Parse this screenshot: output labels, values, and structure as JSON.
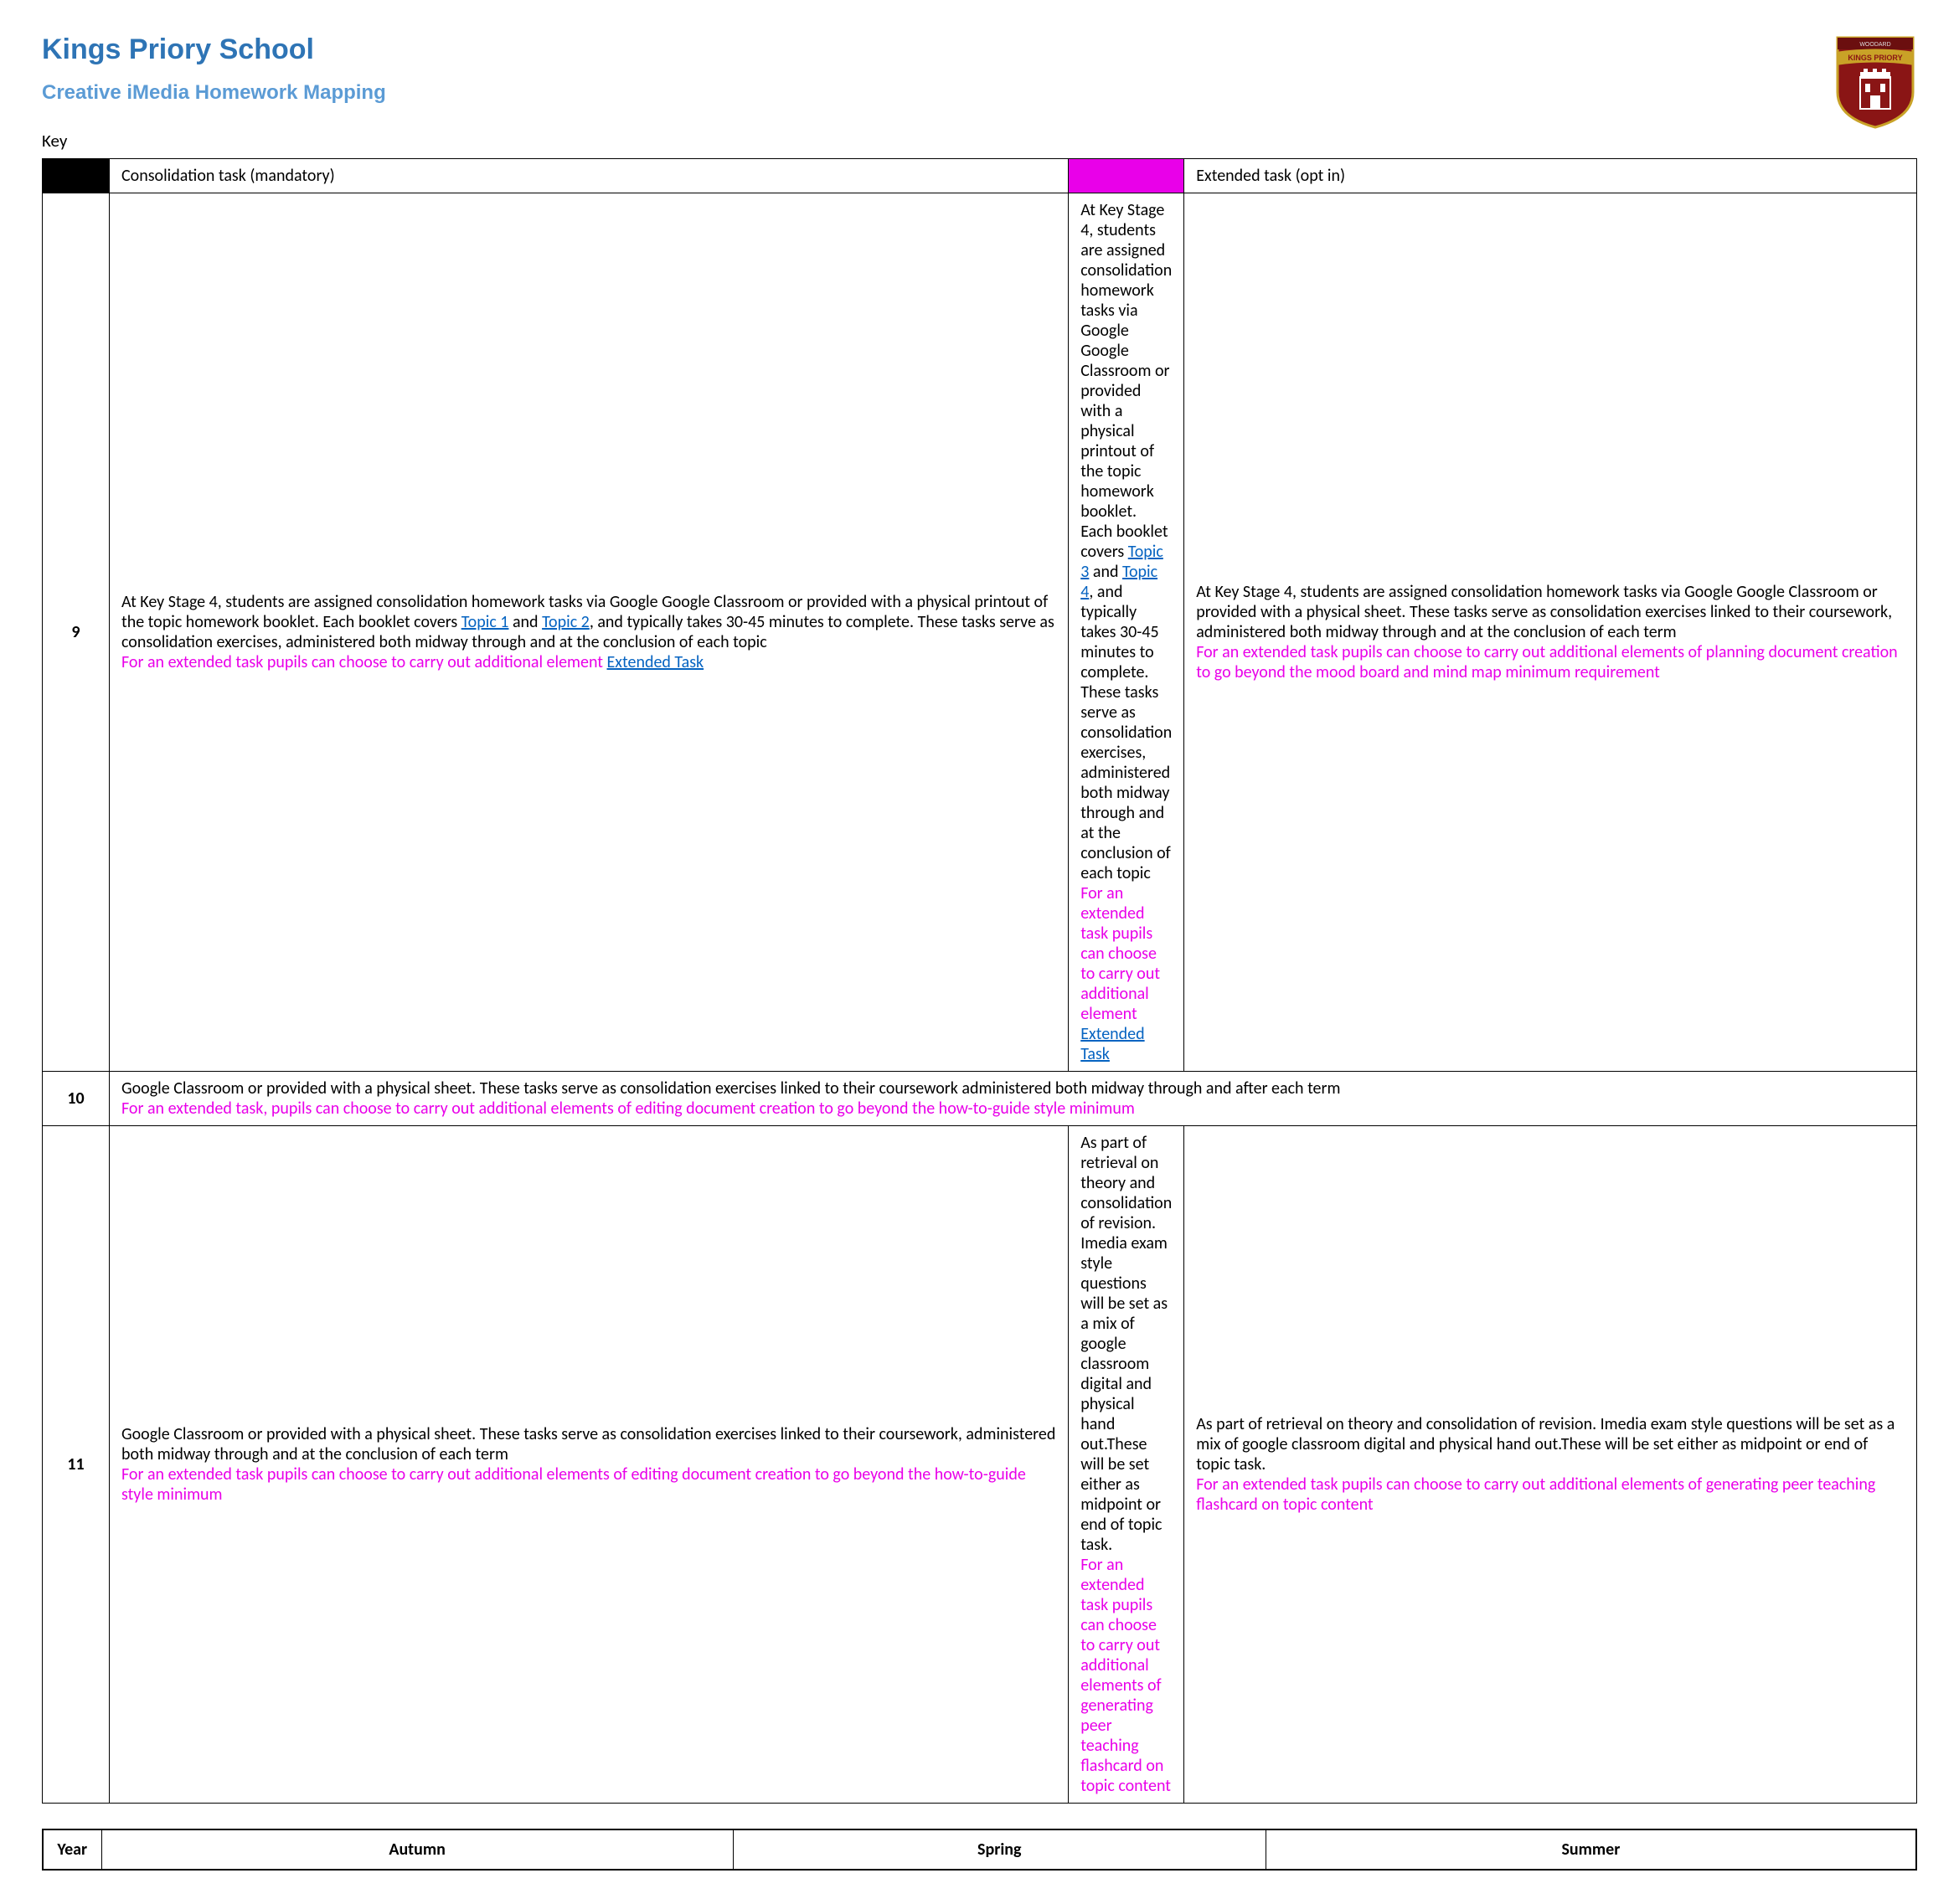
{
  "colors": {
    "title": "#2e74b5",
    "subtitle": "#5b9bd5",
    "magenta": "#e900e9",
    "link": "#0563c1",
    "black": "#000000",
    "logo_bg": "#8a1515",
    "logo_border": "#c9a227",
    "logo_banner": "#c9a227",
    "logo_text": "#8a1515"
  },
  "header": {
    "title": "Kings Priory School",
    "subtitle": "Creative iMedia Homework Mapping",
    "logo_top": "WOODARD",
    "logo_banner": "KINGS PRIORY"
  },
  "key": {
    "label": "Key",
    "items": [
      {
        "swatch": "black",
        "text": "Consolidation task (mandatory)"
      },
      {
        "swatch": "magenta",
        "text": "Extended task (opt in)"
      }
    ]
  },
  "table": {
    "headers": [
      "Year",
      "Autumn",
      "Spring",
      "Summer"
    ],
    "rows": [
      {
        "year": "9",
        "cells": [
          {
            "main_pre": "At Key Stage 4, students are assigned consolidation homework tasks via Google Google Classroom or provided with a physical printout of the topic homework booklet. Each booklet covers ",
            "link1": "Topic 1",
            "mid": " and ",
            "link2": "Topic 2",
            "main_post": ", and typically takes 30-45 minutes to complete. These tasks serve as consolidation exercises, administered both midway through and at the conclusion of each topic",
            "ext_pre": "For an extended task pupils can choose to carry out additional element ",
            "ext_link": "Extended Task",
            "ext_post": ""
          },
          {
            "main_pre": "At Key Stage 4, students are assigned consolidation homework tasks via Google Google Classroom or provided with a physical printout of the topic homework booklet. Each booklet covers ",
            "link1": "Topic 3",
            "mid": " and ",
            "link2": "Topic 4",
            "main_post": ", and typically takes 30-45 minutes to complete. These tasks serve as consolidation exercises, administered both midway through and at the conclusion of each topic",
            "ext_pre": "For an extended task pupils can choose to carry out additional element ",
            "ext_link": "Extended Task",
            "ext_post": ""
          },
          {
            "main_pre": "At Key Stage 4, students are assigned consolidation homework tasks via Google Google Classroom or provided with a physical sheet. These tasks serve as consolidation exercises linked to their coursework, administered both midway through and at the conclusion of each term",
            "link1": "",
            "mid": "",
            "link2": "",
            "main_post": "",
            "ext_pre": "For an extended task pupils can choose to carry out additional elements of planning document creation to go beyond the mood board and mind map minimum requirement",
            "ext_link": "",
            "ext_post": ""
          }
        ]
      },
      {
        "year": "10",
        "span": 3,
        "cell": {
          "main": "Google Classroom or provided with a physical sheet. These tasks serve as consolidation exercises linked to their coursework administered both midway through and after each term",
          "ext": "For an extended task, pupils can choose to carry out additional elements of editing document creation to go beyond the how-to-guide style minimum"
        }
      },
      {
        "year": "11",
        "cells": [
          {
            "main_pre": "Google Classroom or provided with a physical sheet. These tasks serve as consolidation exercises linked to their coursework, administered both midway through and at the conclusion of each term",
            "link1": "",
            "mid": "",
            "link2": "",
            "main_post": "",
            "ext_pre": "For an extended task pupils can choose to carry out additional elements of editing document creation to go beyond the how-to-guide style minimum",
            "ext_link": "",
            "ext_post": ""
          },
          {
            "main_pre": "As part of retrieval on theory and consolidation of revision. Imedia exam style questions will be set as a mix of google classroom digital and physical hand out.These will be set either as midpoint or end of topic task.",
            "link1": "",
            "mid": "",
            "link2": "",
            "main_post": "",
            "ext_pre": "For an extended task pupils can choose to carry out additional elements of generating peer teaching flashcard on topic content",
            "ext_link": "",
            "ext_post": ""
          },
          {
            "main_pre": "As part of retrieval on theory and consolidation of revision. Imedia exam style questions will be set as a mix of google classroom digital and physical hand out.These will be set either as midpoint or end of topic task.",
            "link1": "",
            "mid": "",
            "link2": "",
            "main_post": "",
            "ext_pre": "For an extended task pupils can choose to carry out additional elements of generating peer teaching flashcard on topic content",
            "ext_link": "",
            "ext_post": ""
          }
        ]
      }
    ]
  }
}
